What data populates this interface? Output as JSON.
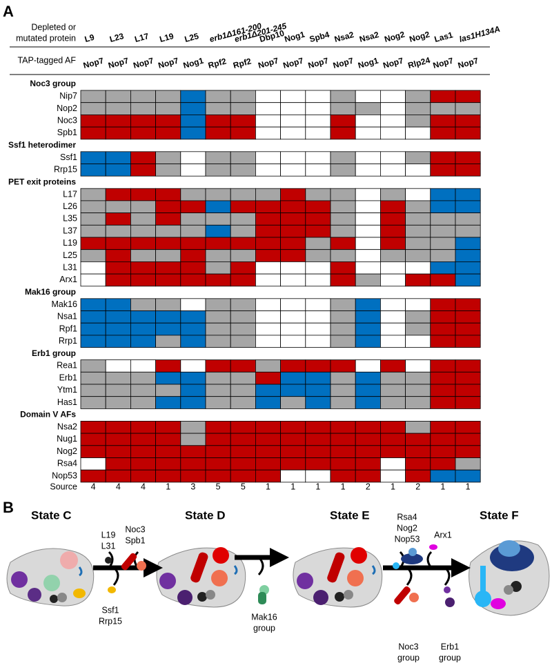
{
  "panel_a": {
    "label": "A",
    "header_depleted": [
      "Depleted or",
      "mutated protein"
    ],
    "header_tagged": "TAP-tagged AF",
    "source_label": "Source",
    "palette": {
      "red": "#c00000",
      "gray": "#a6a6a6",
      "blue": "#0070c0",
      "white": "#ffffff"
    },
    "columns": [
      {
        "protein": "L9",
        "tag": "Nop7",
        "source": 4
      },
      {
        "protein": "L23",
        "tag": "Nop7",
        "source": 4
      },
      {
        "protein": "L17",
        "tag": "Nop7",
        "source": 4
      },
      {
        "protein": "L19",
        "tag": "Nop7",
        "source": 1
      },
      {
        "protein": "L25",
        "tag": "Nog1",
        "source": 3
      },
      {
        "protein": "erb1Δ161-200",
        "tag": "Rpf2",
        "source": 5,
        "italic": true
      },
      {
        "protein": "erb1Δ201-245",
        "tag": "Rpf2",
        "source": 5,
        "italic": true
      },
      {
        "protein": "Dbp10",
        "tag": "Nop7",
        "source": 1
      },
      {
        "protein": "Nog1",
        "tag": "Nop7",
        "source": 1
      },
      {
        "protein": "Spb4",
        "tag": "Nop7",
        "source": 1
      },
      {
        "protein": "Nsa2",
        "tag": "Nop7",
        "source": 1
      },
      {
        "protein": "Nsa2",
        "tag": "Nog1",
        "source": 2
      },
      {
        "protein": "Nog2",
        "tag": "Nop7",
        "source": 1
      },
      {
        "protein": "Nog2",
        "tag": "Rlp24",
        "source": 2
      },
      {
        "protein": "Las1",
        "tag": "Nop7",
        "source": 1
      },
      {
        "protein": "las1H134A",
        "tag": "Nop7",
        "source": 1,
        "italic": true
      }
    ],
    "groups": [
      {
        "name": "Noc3 group",
        "rows": [
          {
            "name": "Nip7",
            "cells": [
              "gray",
              "gray",
              "gray",
              "gray",
              "blue",
              "gray",
              "gray",
              "white",
              "white",
              "white",
              "gray",
              "white",
              "white",
              "gray",
              "red",
              "red"
            ]
          },
          {
            "name": "Nop2",
            "cells": [
              "gray",
              "gray",
              "gray",
              "gray",
              "blue",
              "gray",
              "gray",
              "white",
              "white",
              "white",
              "gray",
              "gray",
              "white",
              "gray",
              "gray",
              "gray"
            ]
          },
          {
            "name": "Noc3",
            "cells": [
              "red",
              "red",
              "red",
              "red",
              "blue",
              "red",
              "red",
              "white",
              "white",
              "white",
              "red",
              "white",
              "white",
              "gray",
              "red",
              "red"
            ]
          },
          {
            "name": "Spb1",
            "cells": [
              "red",
              "red",
              "red",
              "red",
              "blue",
              "red",
              "red",
              "white",
              "white",
              "white",
              "red",
              "white",
              "white",
              "white",
              "red",
              "red"
            ]
          }
        ]
      },
      {
        "name": "Ssf1 heterodimer",
        "rows": [
          {
            "name": "Ssf1",
            "cells": [
              "blue",
              "blue",
              "red",
              "gray",
              "white",
              "gray",
              "gray",
              "white",
              "white",
              "white",
              "gray",
              "white",
              "white",
              "gray",
              "red",
              "red"
            ]
          },
          {
            "name": "Rrp15",
            "cells": [
              "blue",
              "blue",
              "red",
              "gray",
              "white",
              "gray",
              "gray",
              "white",
              "white",
              "white",
              "gray",
              "white",
              "white",
              "white",
              "red",
              "red"
            ]
          }
        ]
      },
      {
        "name": "PET exit proteins",
        "rows": [
          {
            "name": "L17",
            "cells": [
              "gray",
              "red",
              "red",
              "red",
              "gray",
              "gray",
              "gray",
              "gray",
              "red",
              "gray",
              "gray",
              "white",
              "gray",
              "white",
              "blue",
              "blue"
            ]
          },
          {
            "name": "L26",
            "cells": [
              "gray",
              "gray",
              "gray",
              "red",
              "red",
              "blue",
              "red",
              "red",
              "red",
              "red",
              "gray",
              "white",
              "red",
              "gray",
              "blue",
              "blue"
            ]
          },
          {
            "name": "L35",
            "cells": [
              "gray",
              "red",
              "gray",
              "red",
              "gray",
              "gray",
              "gray",
              "red",
              "red",
              "red",
              "gray",
              "white",
              "red",
              "gray",
              "gray",
              "gray"
            ]
          },
          {
            "name": "L37",
            "cells": [
              "gray",
              "gray",
              "gray",
              "gray",
              "gray",
              "blue",
              "gray",
              "red",
              "red",
              "red",
              "gray",
              "white",
              "red",
              "gray",
              "gray",
              "gray"
            ]
          },
          {
            "name": "L19",
            "cells": [
              "red",
              "red",
              "red",
              "red",
              "red",
              "red",
              "red",
              "red",
              "red",
              "gray",
              "red",
              "white",
              "red",
              "gray",
              "gray",
              "blue"
            ]
          },
          {
            "name": "L25",
            "cells": [
              "gray",
              "red",
              "gray",
              "gray",
              "red",
              "gray",
              "gray",
              "red",
              "red",
              "gray",
              "gray",
              "white",
              "gray",
              "gray",
              "gray",
              "blue"
            ]
          },
          {
            "name": "L31",
            "cells": [
              "white",
              "red",
              "red",
              "red",
              "red",
              "gray",
              "red",
              "white",
              "white",
              "white",
              "red",
              "white",
              "white",
              "white",
              "blue",
              "blue"
            ]
          },
          {
            "name": "Arx1",
            "cells": [
              "white",
              "red",
              "red",
              "red",
              "red",
              "red",
              "red",
              "white",
              "white",
              "white",
              "red",
              "gray",
              "white",
              "red",
              "red",
              "blue"
            ]
          }
        ]
      },
      {
        "name": "Mak16 group",
        "rows": [
          {
            "name": "Mak16",
            "cells": [
              "blue",
              "blue",
              "gray",
              "gray",
              "white",
              "gray",
              "gray",
              "white",
              "white",
              "white",
              "gray",
              "blue",
              "white",
              "white",
              "red",
              "red"
            ]
          },
          {
            "name": "Nsa1",
            "cells": [
              "blue",
              "blue",
              "blue",
              "blue",
              "blue",
              "gray",
              "gray",
              "white",
              "white",
              "white",
              "gray",
              "blue",
              "white",
              "gray",
              "red",
              "red"
            ]
          },
          {
            "name": "Rpf1",
            "cells": [
              "blue",
              "blue",
              "blue",
              "blue",
              "blue",
              "gray",
              "gray",
              "white",
              "white",
              "white",
              "gray",
              "blue",
              "white",
              "gray",
              "red",
              "red"
            ]
          },
          {
            "name": "Rrp1",
            "cells": [
              "blue",
              "blue",
              "blue",
              "gray",
              "blue",
              "gray",
              "gray",
              "white",
              "white",
              "white",
              "gray",
              "blue",
              "white",
              "white",
              "red",
              "red"
            ]
          }
        ]
      },
      {
        "name": "Erb1 group",
        "rows": [
          {
            "name": "Rea1",
            "cells": [
              "gray",
              "white",
              "white",
              "red",
              "white",
              "red",
              "red",
              "gray",
              "red",
              "red",
              "red",
              "white",
              "red",
              "white",
              "red",
              "red"
            ]
          },
          {
            "name": "Erb1",
            "cells": [
              "gray",
              "gray",
              "gray",
              "blue",
              "blue",
              "gray",
              "gray",
              "red",
              "blue",
              "blue",
              "gray",
              "blue",
              "gray",
              "gray",
              "red",
              "red"
            ]
          },
          {
            "name": "Ytm1",
            "cells": [
              "gray",
              "gray",
              "gray",
              "gray",
              "blue",
              "gray",
              "gray",
              "blue",
              "blue",
              "blue",
              "gray",
              "blue",
              "gray",
              "gray",
              "red",
              "red"
            ]
          },
          {
            "name": "Has1",
            "cells": [
              "gray",
              "gray",
              "gray",
              "blue",
              "blue",
              "gray",
              "gray",
              "blue",
              "gray",
              "blue",
              "gray",
              "blue",
              "gray",
              "gray",
              "red",
              "red"
            ]
          }
        ]
      },
      {
        "name": "Domain V AFs",
        "rows": [
          {
            "name": "Nsa2",
            "cells": [
              "red",
              "red",
              "red",
              "red",
              "gray",
              "red",
              "red",
              "red",
              "red",
              "red",
              "red",
              "red",
              "red",
              "gray",
              "red",
              "red"
            ]
          },
          {
            "name": "Nug1",
            "cells": [
              "red",
              "red",
              "red",
              "red",
              "gray",
              "red",
              "red",
              "red",
              "red",
              "red",
              "red",
              "red",
              "red",
              "red",
              "red",
              "red"
            ]
          },
          {
            "name": "Nog2",
            "cells": [
              "red",
              "red",
              "red",
              "red",
              "red",
              "red",
              "red",
              "red",
              "red",
              "red",
              "red",
              "red",
              "red",
              "red",
              "red",
              "red"
            ]
          },
          {
            "name": "Rsa4",
            "cells": [
              "white",
              "red",
              "red",
              "red",
              "red",
              "red",
              "red",
              "red",
              "red",
              "red",
              "red",
              "red",
              "white",
              "red",
              "red",
              "gray"
            ]
          },
          {
            "name": "Nop53",
            "cells": [
              "red",
              "red",
              "red",
              "red",
              "red",
              "red",
              "red",
              "red",
              "white",
              "white",
              "red",
              "red",
              "white",
              "red",
              "blue",
              "blue"
            ]
          }
        ]
      }
    ]
  },
  "panel_b": {
    "label": "B",
    "states": [
      "State C",
      "State D",
      "State E",
      "State F"
    ],
    "released_l19_l31": [
      "L19",
      "L31"
    ],
    "bound_noc3_spb1": [
      "Noc3",
      "Spb1"
    ],
    "released_ssf1": [
      "Ssf1",
      "Rrp15"
    ],
    "released_mak16": [
      "Mak16",
      "group"
    ],
    "bound_domain_v": [
      "Rsa4",
      "Nog2",
      "Nop53"
    ],
    "bound_arx1": "Arx1",
    "released_noc3": [
      "Noc3",
      "group"
    ],
    "released_erb1": [
      "Erb1",
      "group"
    ]
  }
}
